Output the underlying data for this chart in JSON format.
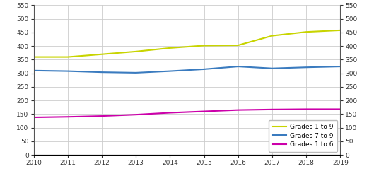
{
  "years": [
    2010,
    2011,
    2012,
    2013,
    2014,
    2015,
    2016,
    2017,
    2018,
    2019
  ],
  "grades_1_to_9": [
    360,
    360,
    370,
    380,
    393,
    402,
    403,
    438,
    452,
    458
  ],
  "grades_7_to_9": [
    310,
    308,
    304,
    302,
    308,
    315,
    325,
    318,
    322,
    325
  ],
  "grades_1_to_6": [
    138,
    140,
    143,
    148,
    155,
    160,
    165,
    167,
    168,
    168
  ],
  "colors": {
    "grades_1_to_9": "#c8d400",
    "grades_7_to_9": "#3a7bbf",
    "grades_1_to_6": "#cc00aa"
  },
  "ylim": [
    0,
    550
  ],
  "yticks": [
    0,
    50,
    100,
    150,
    200,
    250,
    300,
    350,
    400,
    450,
    500,
    550
  ],
  "xticks": [
    2010,
    2011,
    2012,
    2013,
    2014,
    2015,
    2016,
    2017,
    2018,
    2019
  ],
  "legend_labels": [
    "Grades 1 to 9",
    "Grades 7 to 9",
    "Grades 1 to 6"
  ],
  "background_color": "#ffffff",
  "grid_color": "#cccccc",
  "line_width": 1.5,
  "tick_fontsize": 6.5,
  "legend_fontsize": 6.5
}
